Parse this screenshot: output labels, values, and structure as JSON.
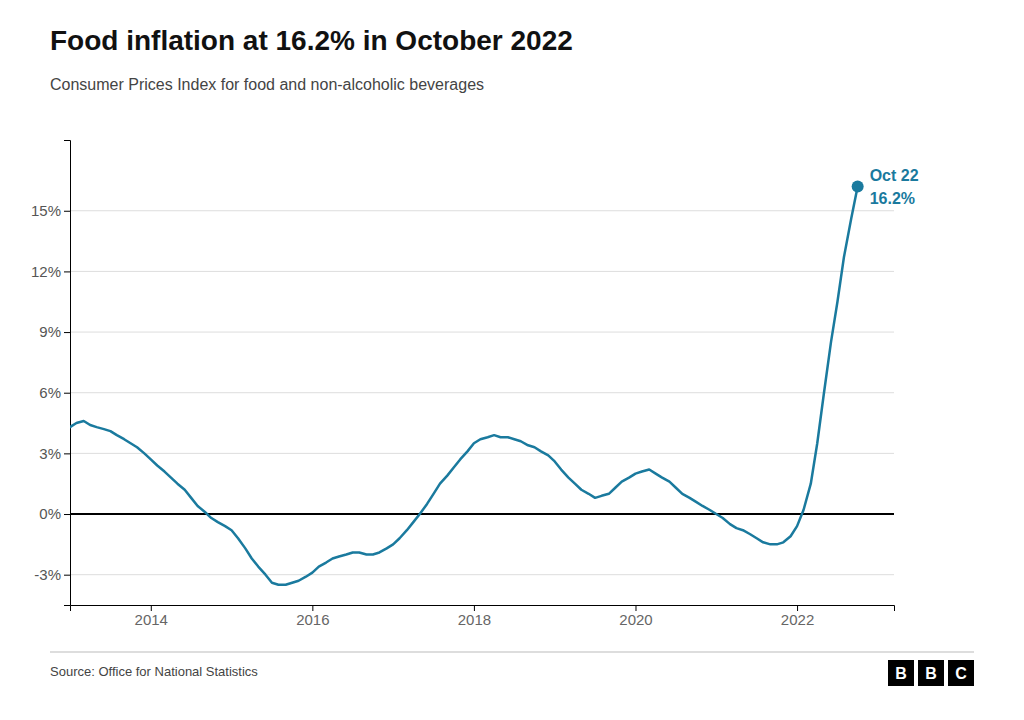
{
  "chart_data": {
    "type": "line",
    "title": "Food inflation at 16.2% in October 2022",
    "subtitle": "Consumer Prices Index for food and non-alcoholic beverages",
    "source": "Source: Office for National Statistics",
    "logo": [
      "B",
      "B",
      "C"
    ],
    "annotations": [
      "Oct 22",
      "16.2%"
    ],
    "color": "#1a7a9e",
    "marker": "end-dot",
    "grid": true,
    "xlim": [
      2013.0,
      2023.2
    ],
    "xticks": [
      2014,
      2016,
      2018,
      2020,
      2022
    ],
    "ylim": [
      -4.5,
      18.5
    ],
    "yticks": [
      {
        "value": -3,
        "label": "-3%"
      },
      {
        "value": 0,
        "label": "0%"
      },
      {
        "value": 3,
        "label": "3%"
      },
      {
        "value": 6,
        "label": "6%"
      },
      {
        "value": 9,
        "label": "9%"
      },
      {
        "value": 12,
        "label": "12%"
      },
      {
        "value": 15,
        "label": "15%"
      }
    ],
    "x": [
      2013.0,
      2013.08,
      2013.17,
      2013.25,
      2013.33,
      2013.42,
      2013.5,
      2013.58,
      2013.67,
      2013.75,
      2013.83,
      2013.92,
      2014.0,
      2014.08,
      2014.17,
      2014.25,
      2014.33,
      2014.42,
      2014.5,
      2014.58,
      2014.67,
      2014.75,
      2014.83,
      2014.92,
      2015.0,
      2015.08,
      2015.17,
      2015.25,
      2015.33,
      2015.42,
      2015.5,
      2015.58,
      2015.67,
      2015.75,
      2015.83,
      2015.92,
      2016.0,
      2016.08,
      2016.17,
      2016.25,
      2016.33,
      2016.42,
      2016.5,
      2016.58,
      2016.67,
      2016.75,
      2016.83,
      2016.92,
      2017.0,
      2017.08,
      2017.17,
      2017.25,
      2017.33,
      2017.42,
      2017.5,
      2017.58,
      2017.67,
      2017.75,
      2017.83,
      2017.92,
      2018.0,
      2018.08,
      2018.17,
      2018.25,
      2018.33,
      2018.42,
      2018.5,
      2018.58,
      2018.67,
      2018.75,
      2018.83,
      2018.92,
      2019.0,
      2019.08,
      2019.17,
      2019.25,
      2019.33,
      2019.42,
      2019.5,
      2019.58,
      2019.67,
      2019.75,
      2019.83,
      2019.92,
      2020.0,
      2020.08,
      2020.17,
      2020.25,
      2020.33,
      2020.42,
      2020.5,
      2020.58,
      2020.67,
      2020.75,
      2020.83,
      2020.92,
      2021.0,
      2021.08,
      2021.17,
      2021.25,
      2021.33,
      2021.42,
      2021.5,
      2021.58,
      2021.67,
      2021.75,
      2021.83,
      2021.92,
      2022.0,
      2022.08,
      2022.17,
      2022.25,
      2022.33,
      2022.42,
      2022.5,
      2022.58,
      2022.67,
      2022.75
    ],
    "values": [
      4.3,
      4.5,
      4.6,
      4.4,
      4.3,
      4.2,
      4.1,
      3.9,
      3.7,
      3.5,
      3.3,
      3.0,
      2.7,
      2.4,
      2.1,
      1.8,
      1.5,
      1.2,
      0.8,
      0.4,
      0.1,
      -0.2,
      -0.4,
      -0.6,
      -0.8,
      -1.2,
      -1.7,
      -2.2,
      -2.6,
      -3.0,
      -3.4,
      -3.5,
      -3.5,
      -3.4,
      -3.3,
      -3.1,
      -2.9,
      -2.6,
      -2.4,
      -2.2,
      -2.1,
      -2.0,
      -1.9,
      -1.9,
      -2.0,
      -2.0,
      -1.9,
      -1.7,
      -1.5,
      -1.2,
      -0.8,
      -0.4,
      0.0,
      0.5,
      1.0,
      1.5,
      1.9,
      2.3,
      2.7,
      3.1,
      3.5,
      3.7,
      3.8,
      3.9,
      3.8,
      3.8,
      3.7,
      3.6,
      3.4,
      3.3,
      3.1,
      2.9,
      2.6,
      2.2,
      1.8,
      1.5,
      1.2,
      1.0,
      0.8,
      0.9,
      1.0,
      1.3,
      1.6,
      1.8,
      2.0,
      2.1,
      2.2,
      2.0,
      1.8,
      1.6,
      1.3,
      1.0,
      0.8,
      0.6,
      0.4,
      0.2,
      0.0,
      -0.2,
      -0.5,
      -0.7,
      -0.8,
      -1.0,
      -1.2,
      -1.4,
      -1.5,
      -1.5,
      -1.4,
      -1.1,
      -0.6,
      0.2,
      1.5,
      3.5,
      5.9,
      8.5,
      10.5,
      12.7,
      14.6,
      16.2
    ]
  }
}
